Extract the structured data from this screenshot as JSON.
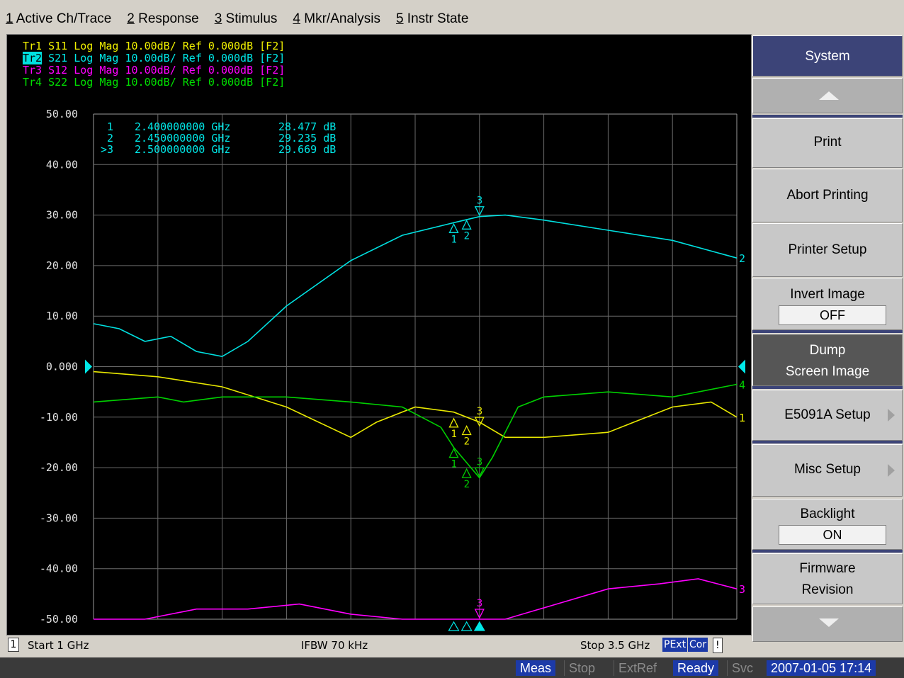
{
  "menu": [
    {
      "num": "1",
      "label": " Active Ch/Trace"
    },
    {
      "num": "2",
      "label": " Response"
    },
    {
      "num": "3",
      "label": " Stimulus"
    },
    {
      "num": "4",
      "label": " Mkr/Analysis"
    },
    {
      "num": "5",
      "label": " Instr State"
    }
  ],
  "traces": [
    {
      "id": "Tr1",
      "text": " S11 Log Mag 10.00dB/ Ref 0.000dB [F2]",
      "color": "#f0f000"
    },
    {
      "id": "Tr2",
      "text": " S21 Log Mag 10.00dB/ Ref 0.000dB [F2]",
      "color": "#00e8e8"
    },
    {
      "id": "Tr3",
      "text": " S12 Log Mag 10.00dB/ Ref 0.000dB [F2]",
      "color": "#ff00ff"
    },
    {
      "id": "Tr4",
      "text": " S22 Log Mag 10.00dB/ Ref 0.000dB [F2]",
      "color": "#00e000"
    }
  ],
  "marker_table": [
    {
      "id": "1",
      "freq": "2.400000000 GHz",
      "value": "28.477 dB"
    },
    {
      "id": "2",
      "freq": "2.450000000 GHz",
      "value": "29.235 dB"
    },
    {
      "id": ">3",
      "freq": "2.500000000 GHz",
      "value": "29.669 dB"
    }
  ],
  "chart_data": {
    "type": "line",
    "ylim": [
      -50,
      50
    ],
    "xlim": [
      1.0,
      3.5
    ],
    "yticks": [
      "50.00",
      "40.00",
      "30.00",
      "20.00",
      "10.00",
      "0.000",
      "-10.00",
      "-20.00",
      "-30.00",
      "-40.00",
      "-50.00"
    ],
    "series": [
      {
        "name": "Tr1",
        "color": "#e8e800",
        "end_label": "1",
        "x": [
          1.0,
          1.25,
          1.5,
          1.75,
          2.0,
          2.1,
          2.25,
          2.4,
          2.5,
          2.6,
          2.75,
          3.0,
          3.1,
          3.25,
          3.4,
          3.5
        ],
        "y": [
          -1,
          -2,
          -4,
          -8,
          -14,
          -11,
          -8,
          -9,
          -11,
          -14,
          -14,
          -13,
          -11,
          -8,
          -7,
          -10
        ],
        "markers": [
          {
            "label": "1",
            "x": 2.4,
            "y": -10
          },
          {
            "label": "2",
            "x": 2.45,
            "y": -11.5
          },
          {
            "label": "3",
            "x": 2.5,
            "y": -12
          }
        ]
      },
      {
        "name": "Tr2",
        "color": "#00e0e0",
        "end_label": "2",
        "x": [
          1.0,
          1.1,
          1.2,
          1.3,
          1.4,
          1.5,
          1.6,
          1.75,
          2.0,
          2.2,
          2.4,
          2.5,
          2.6,
          2.75,
          3.0,
          3.25,
          3.5
        ],
        "y": [
          8.5,
          7.5,
          5,
          6,
          3,
          2,
          5,
          12,
          21,
          26,
          28.5,
          29.7,
          30,
          29,
          27,
          25,
          21.5
        ],
        "markers": [
          {
            "label": "1",
            "x": 2.4,
            "y": 28.5
          },
          {
            "label": "2",
            "x": 2.45,
            "y": 29.2
          },
          {
            "label": "3",
            "x": 2.5,
            "y": 29.7
          }
        ]
      },
      {
        "name": "Tr3",
        "color": "#ff00ff",
        "end_label": "3",
        "x": [
          1.0,
          1.2,
          1.4,
          1.6,
          1.8,
          2.0,
          2.2,
          2.4,
          2.6,
          2.8,
          3.0,
          3.2,
          3.35,
          3.5
        ],
        "y": [
          -50,
          -50,
          -48,
          -48,
          -47,
          -49,
          -50,
          -50,
          -50,
          -47,
          -44,
          -43,
          -42,
          -44
        ],
        "markers": [
          {
            "label": "3",
            "x": 2.5,
            "y": -50
          }
        ]
      },
      {
        "name": "Tr4",
        "color": "#00d000",
        "end_label": "4",
        "x": [
          1.0,
          1.25,
          1.35,
          1.5,
          1.75,
          2.0,
          2.2,
          2.35,
          2.4,
          2.5,
          2.55,
          2.65,
          2.75,
          3.0,
          3.25,
          3.5
        ],
        "y": [
          -7,
          -6,
          -7,
          -6,
          -6,
          -7,
          -8,
          -12,
          -16,
          -22,
          -18,
          -8,
          -6,
          -5,
          -6,
          -3.5
        ],
        "markers": [
          {
            "label": "1",
            "x": 2.4,
            "y": -16
          },
          {
            "label": "2",
            "x": 2.45,
            "y": -20
          },
          {
            "label": "3",
            "x": 2.5,
            "y": -22
          }
        ]
      }
    ]
  },
  "bottom": {
    "channel": "1",
    "start": "Start 1 GHz",
    "ifbw": "IFBW 70 kHz",
    "stop": "Stop 3.5 GHz",
    "pext": "PExt",
    "cor": "Cor",
    "err": "!"
  },
  "status": {
    "meas": "Meas",
    "stop": "Stop",
    "extref": "ExtRef",
    "ready": "Ready",
    "svc": "Svc",
    "datetime": "2007-01-05 17:14"
  },
  "softkeys": {
    "title": "System",
    "print": "Print",
    "abort": "Abort Printing",
    "printer_setup": "Printer Setup",
    "invert_label": "Invert Image",
    "invert_value": "OFF",
    "dump_1": "Dump",
    "dump_2": "Screen Image",
    "e5091a": "E5091A Setup",
    "misc": "Misc Setup",
    "backlight_label": "Backlight",
    "backlight_value": "ON",
    "firmware_1": "Firmware",
    "firmware_2": "Revision"
  }
}
